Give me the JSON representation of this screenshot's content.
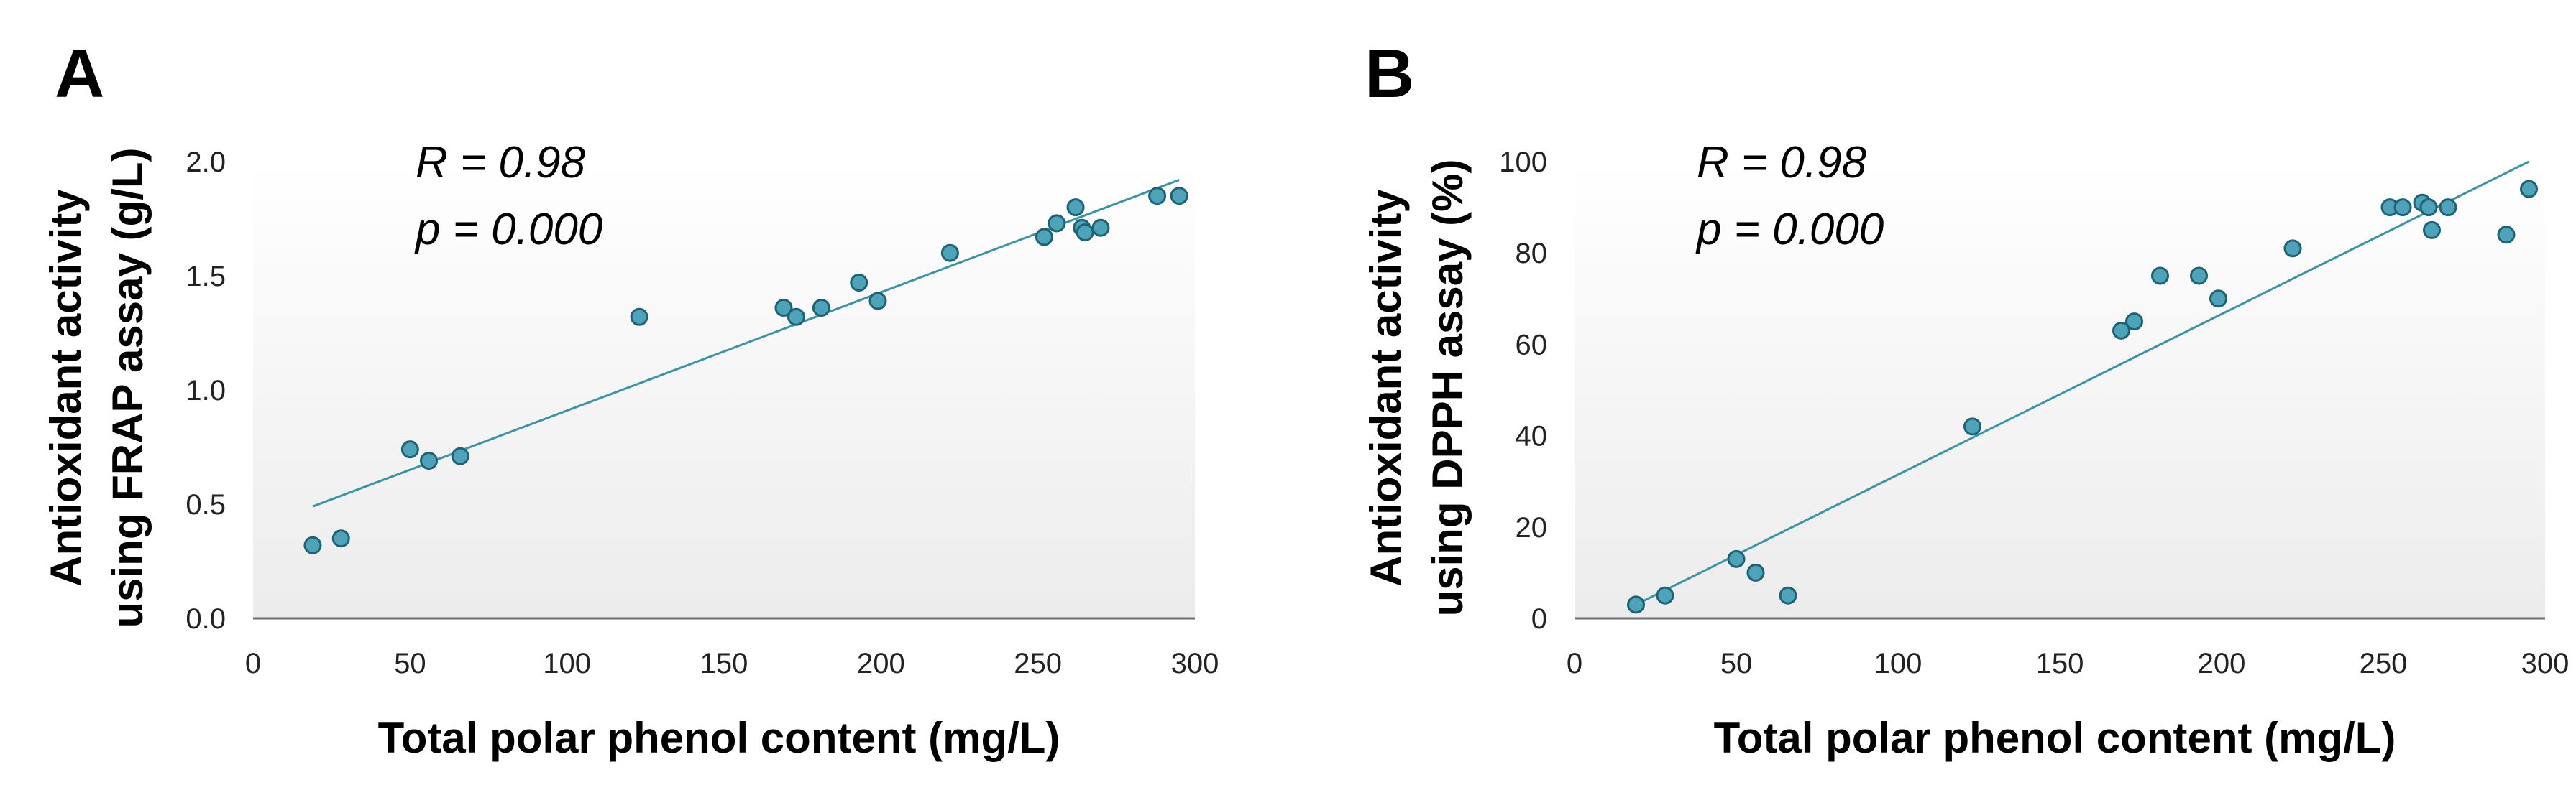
{
  "chart_data": [
    {
      "type": "scatter",
      "panel": "A",
      "annotations": [
        "R = 0.98",
        "p = 0.000"
      ],
      "xlabel": "Total polar phenol content (mg/L)",
      "ylabel_lines": [
        "Antioxidant activity",
        "using FRAP assay (g/L)"
      ],
      "xlim": [
        0,
        300
      ],
      "ylim": [
        0,
        2.0
      ],
      "xticks": [
        "0",
        "50",
        "100",
        "150",
        "200",
        "250",
        "300"
      ],
      "yticks": [
        "0.0",
        "0.5",
        "1.0",
        "1.5",
        "2.0"
      ],
      "x": [
        19,
        28,
        50,
        56,
        66,
        123,
        169,
        173,
        181,
        193,
        199,
        222,
        252,
        256,
        262,
        264,
        265,
        270,
        288,
        295
      ],
      "y": [
        0.32,
        0.35,
        0.74,
        0.69,
        0.71,
        1.32,
        1.36,
        1.32,
        1.36,
        1.47,
        1.39,
        1.6,
        1.67,
        1.73,
        1.8,
        1.71,
        1.69,
        1.71,
        1.85,
        1.85
      ],
      "trendline": {
        "x": [
          19,
          295
        ],
        "y": [
          0.49,
          1.92
        ]
      }
    },
    {
      "type": "scatter",
      "panel": "B",
      "annotations": [
        "R = 0.98",
        "p = 0.000"
      ],
      "xlabel": "Total polar phenol content (mg/L)",
      "ylabel_lines": [
        "Antioxidant activity",
        "using DPPH assay (%)"
      ],
      "xlim": [
        0,
        300
      ],
      "ylim": [
        0,
        100
      ],
      "xticks": [
        "0",
        "50",
        "100",
        "150",
        "200",
        "250",
        "300"
      ],
      "yticks": [
        "0",
        "20",
        "40",
        "60",
        "80",
        "100"
      ],
      "x": [
        19,
        28,
        50,
        56,
        66,
        123,
        169,
        173,
        181,
        193,
        199,
        222,
        252,
        256,
        262,
        264,
        265,
        270,
        288,
        295
      ],
      "y": [
        3,
        5,
        13,
        10,
        5,
        42,
        63,
        65,
        75,
        75,
        70,
        81,
        90,
        90,
        91,
        90,
        85,
        90,
        84,
        94
      ],
      "trendline": {
        "x": [
          19,
          295
        ],
        "y": [
          3,
          100
        ]
      }
    }
  ]
}
